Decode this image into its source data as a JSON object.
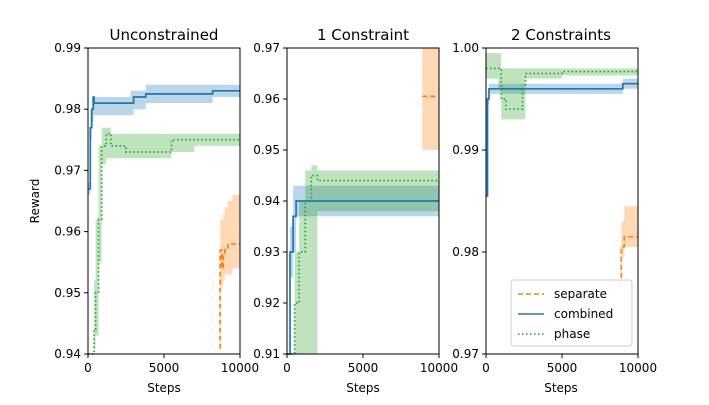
{
  "chart_data": [
    {
      "type": "line",
      "title": "Unconstrained",
      "xlabel": "Steps",
      "ylabel": "Reward",
      "xlim": [
        0,
        10000
      ],
      "ylim": [
        0.94,
        0.99
      ],
      "xticks": [
        "0",
        "5000",
        "10000"
      ],
      "yticks": [
        "0.94",
        "0.95",
        "0.96",
        "0.97",
        "0.98",
        "0.99"
      ],
      "series": [
        {
          "name": "separate",
          "color": "#ff7f0e",
          "style": "dashed",
          "x": [
            8650,
            8700,
            8800,
            8900,
            9000,
            9200,
            9500,
            10000
          ],
          "y": [
            0.941,
            0.957,
            0.954,
            0.956,
            0.957,
            0.958,
            0.958,
            0.958
          ],
          "lower": [
            0.941,
            0.951,
            0.951,
            0.952,
            0.953,
            0.953,
            0.954,
            0.954
          ],
          "upper": [
            0.941,
            0.962,
            0.962,
            0.963,
            0.964,
            0.965,
            0.966,
            0.966
          ]
        },
        {
          "name": "combined",
          "color": "#1f77b4",
          "style": "solid",
          "x": [
            0,
            150,
            250,
            350,
            400,
            600,
            2800,
            2801,
            3000,
            3800,
            8200,
            10000
          ],
          "y": [
            0.967,
            0.977,
            0.98,
            0.982,
            0.981,
            0.981,
            0.981,
            0.981,
            0.982,
            0.9825,
            0.983,
            0.983
          ],
          "lower": [
            0.966,
            0.975,
            0.978,
            0.979,
            0.979,
            0.979,
            0.979,
            0.979,
            0.98,
            0.981,
            0.982,
            0.982
          ],
          "upper": [
            0.968,
            0.98,
            0.982,
            0.982,
            0.982,
            0.982,
            0.982,
            0.983,
            0.983,
            0.984,
            0.984,
            0.984
          ]
        },
        {
          "name": "phase",
          "color": "#2ca02c",
          "style": "dotted",
          "x": [
            0,
            400,
            500,
            700,
            900,
            1200,
            1500,
            1800,
            2500,
            5000,
            5500,
            6000,
            7000,
            8000,
            9000,
            10000
          ],
          "y": [
            0.94,
            0.944,
            0.95,
            0.962,
            0.974,
            0.976,
            0.974,
            0.974,
            0.973,
            0.973,
            0.975,
            0.975,
            0.975,
            0.975,
            0.975,
            0.975
          ],
          "lower": [
            0.94,
            0.941,
            0.943,
            0.955,
            0.971,
            0.972,
            0.972,
            0.972,
            0.972,
            0.972,
            0.973,
            0.973,
            0.974,
            0.974,
            0.974,
            0.974
          ],
          "upper": [
            0.94,
            0.952,
            0.962,
            0.974,
            0.977,
            0.977,
            0.976,
            0.976,
            0.976,
            0.976,
            0.976,
            0.976,
            0.976,
            0.976,
            0.976,
            0.976
          ]
        }
      ]
    },
    {
      "type": "line",
      "title": "1 Constraint",
      "xlabel": "Steps",
      "ylabel": "",
      "xlim": [
        0,
        10000
      ],
      "ylim": [
        0.91,
        0.97
      ],
      "xticks": [
        "0",
        "5000",
        "10000"
      ],
      "yticks": [
        "0.91",
        "0.92",
        "0.93",
        "0.94",
        "0.95",
        "0.96",
        "0.97"
      ],
      "series": [
        {
          "name": "separate",
          "color": "#ff7f0e",
          "style": "dashed",
          "x": [
            8900,
            10000
          ],
          "y": [
            0.9605,
            0.9605
          ],
          "lower": [
            0.95,
            0.95
          ],
          "upper": [
            0.97,
            0.97
          ]
        },
        {
          "name": "combined",
          "color": "#1f77b4",
          "style": "solid",
          "x": [
            0,
            200,
            400,
            600,
            10000
          ],
          "y": [
            0.91,
            0.93,
            0.937,
            0.94,
            0.94
          ],
          "lower": [
            0.91,
            0.925,
            0.93,
            0.937,
            0.937
          ],
          "upper": [
            0.91,
            0.935,
            0.943,
            0.943,
            0.943
          ]
        },
        {
          "name": "phase",
          "color": "#2ca02c",
          "style": "dotted",
          "x": [
            0,
            500,
            800,
            1200,
            1600,
            2000,
            10000
          ],
          "y": [
            0.91,
            0.92,
            0.93,
            0.94,
            0.945,
            0.944,
            0.944
          ],
          "lower": [
            0.91,
            0.91,
            0.91,
            0.91,
            0.91,
            0.938,
            0.938
          ],
          "upper": [
            0.91,
            0.93,
            0.94,
            0.946,
            0.947,
            0.946,
            0.946
          ]
        }
      ]
    },
    {
      "type": "line",
      "title": "2 Constraints",
      "xlabel": "Steps",
      "ylabel": "",
      "xlim": [
        0,
        10000
      ],
      "ylim": [
        0.97,
        1.0
      ],
      "xticks": [
        "0",
        "5000",
        "10000"
      ],
      "yticks": [
        "0.97",
        "0.98",
        "0.99",
        "1.00"
      ],
      "series": [
        {
          "name": "separate",
          "color": "#ff7f0e",
          "style": "dashed",
          "x": [
            8700,
            8900,
            9100,
            10000
          ],
          "y": [
            0.977,
            0.9805,
            0.9815,
            0.9815
          ],
          "lower": [
            0.977,
            0.9795,
            0.9805,
            0.9805
          ],
          "upper": [
            0.977,
            0.983,
            0.9845,
            0.9845
          ]
        },
        {
          "name": "combined",
          "color": "#1f77b4",
          "style": "solid",
          "x": [
            0,
            100,
            200,
            1000,
            3000,
            6000,
            9000,
            10000
          ],
          "y": [
            0.9855,
            0.995,
            0.996,
            0.996,
            0.996,
            0.996,
            0.9965,
            0.9965
          ],
          "lower": [
            0.9855,
            0.9945,
            0.9955,
            0.9955,
            0.9955,
            0.9955,
            0.996,
            0.996
          ],
          "upper": [
            0.9855,
            0.9955,
            0.9965,
            0.9965,
            0.9965,
            0.9965,
            0.997,
            0.997
          ]
        },
        {
          "name": "phase",
          "color": "#2ca02c",
          "style": "dotted",
          "x": [
            0,
            800,
            1000,
            1300,
            1800,
            2400,
            2600,
            3500,
            5000,
            10000
          ],
          "y": [
            0.998,
            0.998,
            0.995,
            0.994,
            0.994,
            0.996,
            0.9975,
            0.9975,
            0.9977,
            0.9977
          ],
          "lower": [
            0.997,
            0.996,
            0.993,
            0.993,
            0.993,
            0.993,
            0.997,
            0.997,
            0.9973,
            0.9973
          ],
          "upper": [
            0.9995,
            0.9995,
            0.998,
            0.998,
            0.998,
            0.998,
            0.998,
            0.998,
            0.998,
            0.998
          ]
        }
      ]
    }
  ],
  "legend": {
    "placement": "lower-right of third panel",
    "entries": [
      {
        "label": "separate",
        "color": "#ff7f0e",
        "style": "dashed"
      },
      {
        "label": "combined",
        "color": "#1f77b4",
        "style": "solid"
      },
      {
        "label": "phase",
        "color": "#2ca02c",
        "style": "dotted"
      }
    ]
  }
}
